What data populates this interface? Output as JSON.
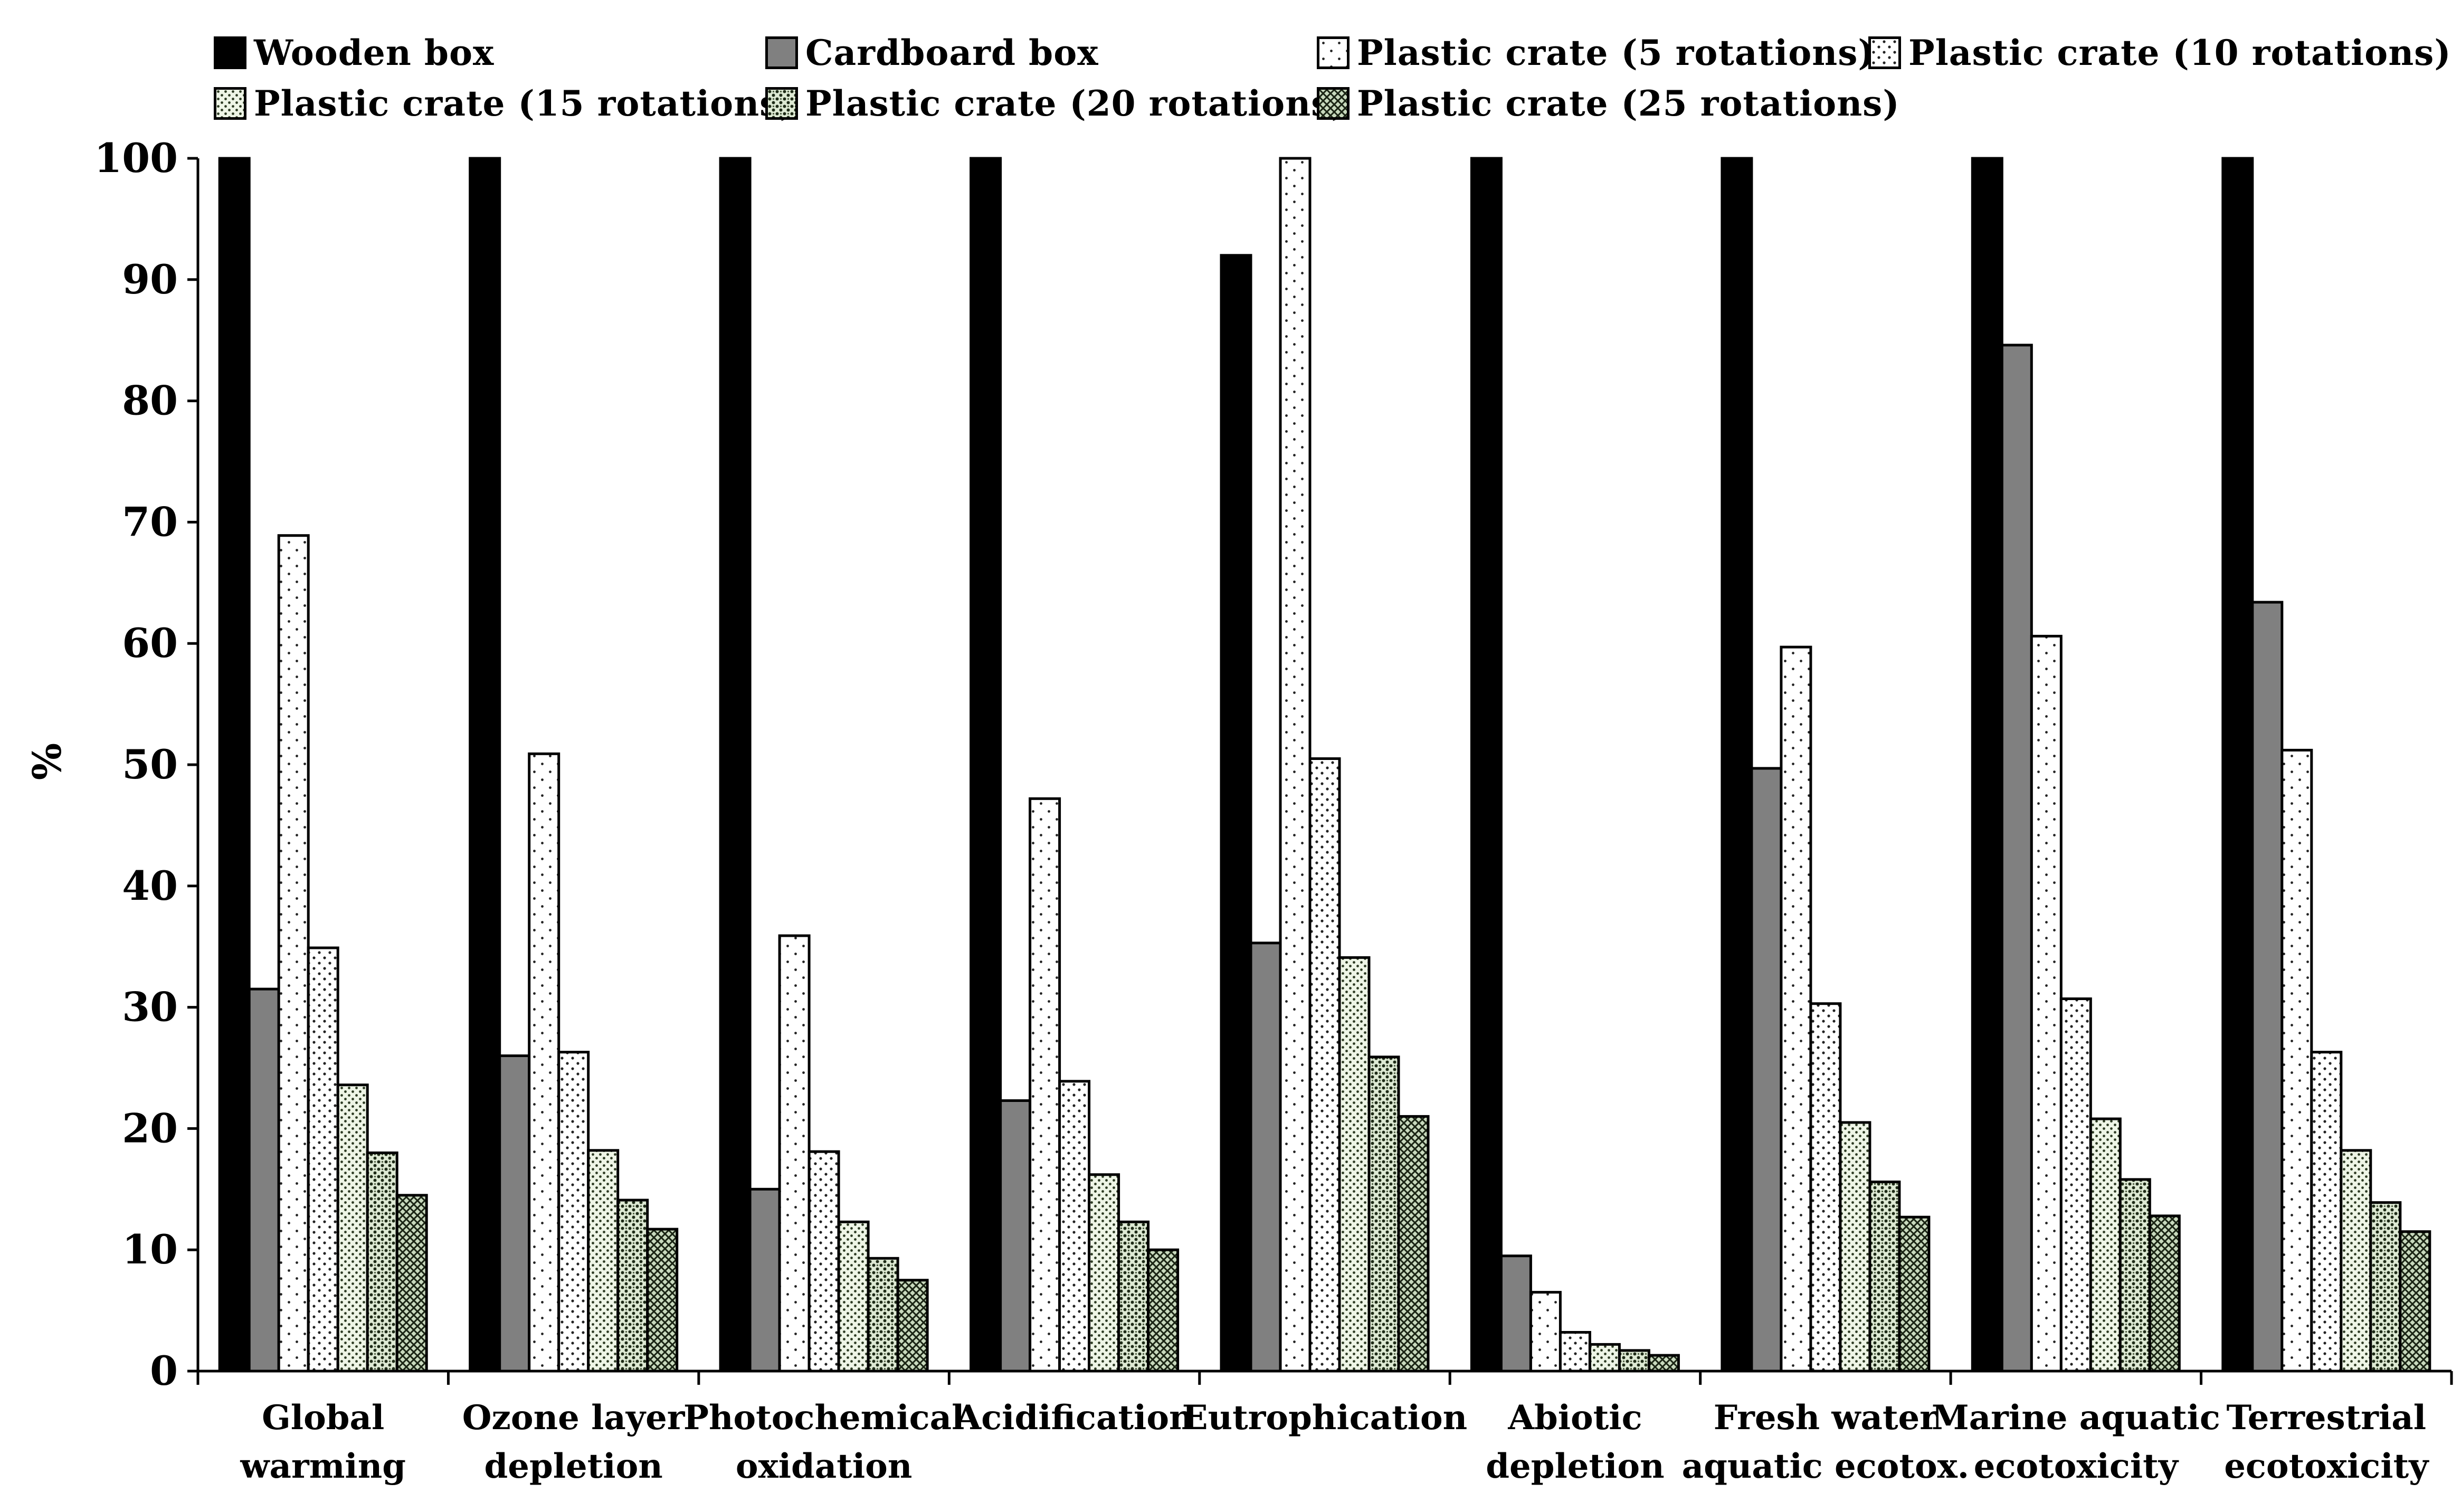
{
  "chart_data": {
    "type": "bar",
    "title": "",
    "xlabel": "",
    "ylabel": "%",
    "ylim": [
      0,
      100
    ],
    "yticks": [
      0,
      10,
      20,
      30,
      40,
      50,
      60,
      70,
      80,
      90,
      100
    ],
    "grid": false,
    "legend_position": "top",
    "categories": [
      [
        "Global",
        "warming"
      ],
      [
        "Ozone layer",
        "depletion"
      ],
      [
        "Photochemical",
        "oxidation"
      ],
      [
        "Acidification"
      ],
      [
        "Eutrophication"
      ],
      [
        "Abiotic",
        "depletion"
      ],
      [
        "Fresh water",
        "aquatic ecotox."
      ],
      [
        "Marine aquatic",
        "ecotoxicity"
      ],
      [
        "Terrestrial",
        "ecotoxicity"
      ]
    ],
    "series": [
      {
        "name": "Wooden box",
        "color": "#000000",
        "pattern": "solid",
        "values": [
          100,
          100,
          100,
          100,
          92,
          100,
          100,
          100,
          100
        ]
      },
      {
        "name": "Cardboard box",
        "color": "#808080",
        "pattern": "solid",
        "values": [
          31.5,
          26,
          15,
          22.3,
          35.3,
          9.5,
          49.7,
          84.6,
          63.4
        ]
      },
      {
        "name": "Plastic crate (5 rotations)",
        "color": "#ffffff",
        "pattern": "sparse-dots",
        "values": [
          68.9,
          50.9,
          35.9,
          47.2,
          100,
          6.5,
          59.7,
          60.6,
          51.2
        ]
      },
      {
        "name": "Plastic crate (10 rotations)",
        "color": "#ffffff",
        "pattern": "dots",
        "values": [
          34.9,
          26.3,
          18.1,
          23.9,
          50.5,
          3.2,
          30.3,
          30.7,
          26.3
        ]
      },
      {
        "name": "Plastic crate (15 rotations)",
        "color": "#eef5e6",
        "pattern": "dense-dots",
        "values": [
          23.6,
          18.2,
          12.3,
          16.2,
          34.1,
          2.2,
          20.5,
          20.8,
          18.2
        ]
      },
      {
        "name": "Plastic crate (20 rotations)",
        "color": "#dde9d3",
        "pattern": "grid",
        "values": [
          18,
          14.1,
          9.3,
          12.3,
          25.9,
          1.7,
          15.6,
          15.8,
          13.9
        ]
      },
      {
        "name": "Plastic crate (25 rotations)",
        "color": "#c8d9bd",
        "pattern": "dense-grid",
        "values": [
          14.5,
          11.7,
          7.5,
          10,
          21,
          1.3,
          12.7,
          12.8,
          11.5
        ]
      }
    ]
  }
}
